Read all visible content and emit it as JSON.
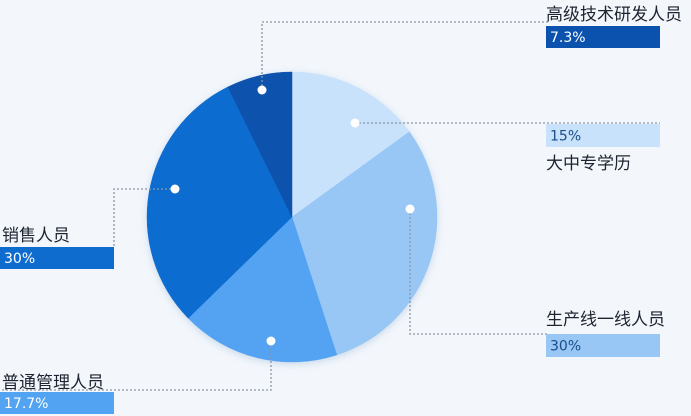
{
  "chart_data": {
    "type": "pie",
    "start_angle_deg": 0,
    "direction": "clockwise",
    "slices": [
      {
        "label": "大中专学历",
        "value": 15,
        "value_label": "15%",
        "color": "#c8e2fb",
        "box_color": "#c8e2fb",
        "text_color": "#1a4e8a"
      },
      {
        "label": "生产线一线人员",
        "value": 30,
        "value_label": "30%",
        "color": "#98c7f6",
        "box_color": "#98c7f6",
        "text_color": "#1a4e8a"
      },
      {
        "label": "普通管理人员",
        "value": 17.7,
        "value_label": "17.7%",
        "color": "#52a3f2",
        "box_color": "#52a3f2",
        "text_color": "#ffffff"
      },
      {
        "label": "销售人员",
        "value": 30,
        "value_label": "30%",
        "color": "#0f6ccf",
        "box_color": "#0f6ccf",
        "text_color": "#ffffff"
      },
      {
        "label": "高级技术研发人员",
        "value": 7.3,
        "value_label": "7.3%",
        "color": "#0a52ad",
        "box_color": "#0a52ad",
        "text_color": "#ffffff"
      }
    ]
  }
}
